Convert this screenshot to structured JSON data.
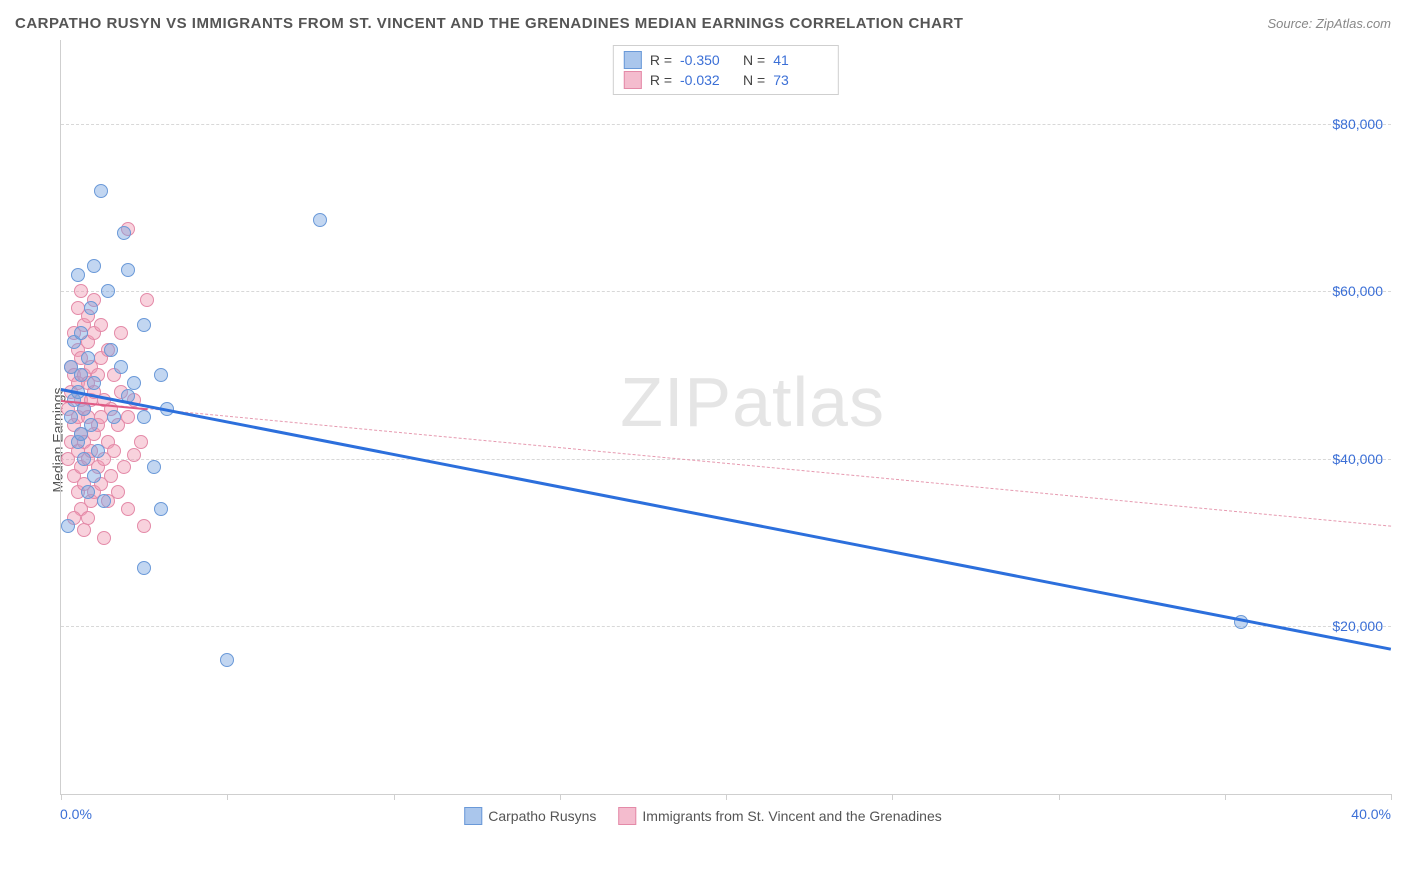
{
  "title": "CARPATHO RUSYN VS IMMIGRANTS FROM ST. VINCENT AND THE GRENADINES MEDIAN EARNINGS CORRELATION CHART",
  "source": "Source: ZipAtlas.com",
  "watermark_a": "ZIP",
  "watermark_b": "atlas",
  "ylabel": "Median Earnings",
  "x_min_label": "0.0%",
  "x_max_label": "40.0%",
  "chart": {
    "type": "scatter",
    "xlim": [
      0,
      40
    ],
    "ylim": [
      0,
      90000
    ],
    "ytick_step": 20000,
    "ytick_labels": [
      "$20,000",
      "$40,000",
      "$60,000",
      "$80,000"
    ],
    "ytick_values": [
      20000,
      40000,
      60000,
      80000
    ],
    "xtick_values": [
      0,
      5,
      10,
      15,
      20,
      25,
      30,
      35,
      40
    ],
    "background_color": "#ffffff",
    "grid_color": "#d8d8d8",
    "axis_color": "#cfcfcf",
    "label_color": "#555555",
    "tick_label_color": "#3b6fd6",
    "point_radius": 7,
    "series": [
      {
        "name": "Carpatho Rusyns",
        "fill": "rgba(120,165,225,0.45)",
        "stroke": "#6a99d8",
        "swatch_fill": "#aac6ec",
        "swatch_stroke": "#6a99d8",
        "R": "-0.350",
        "N": "41",
        "trend": {
          "x1": 0,
          "y1": 48500,
          "x2": 40,
          "y2": 17500,
          "width": 2.5,
          "color": "#2c6fdc",
          "dash": "solid"
        },
        "points": [
          [
            0.2,
            32000
          ],
          [
            0.3,
            45000
          ],
          [
            0.3,
            51000
          ],
          [
            0.4,
            47000
          ],
          [
            0.4,
            54000
          ],
          [
            0.5,
            62000
          ],
          [
            0.5,
            48000
          ],
          [
            0.5,
            42000
          ],
          [
            0.6,
            55000
          ],
          [
            0.6,
            50000
          ],
          [
            0.7,
            46000
          ],
          [
            0.7,
            40000
          ],
          [
            0.8,
            36000
          ],
          [
            0.8,
            52000
          ],
          [
            0.9,
            58000
          ],
          [
            0.9,
            44000
          ],
          [
            1.0,
            49000
          ],
          [
            1.0,
            63000
          ],
          [
            1.1,
            41000
          ],
          [
            1.2,
            72000
          ],
          [
            1.3,
            35000
          ],
          [
            1.4,
            60000
          ],
          [
            1.5,
            53000
          ],
          [
            1.6,
            45000
          ],
          [
            1.8,
            51000
          ],
          [
            1.9,
            67000
          ],
          [
            2.0,
            62500
          ],
          [
            2.0,
            47500
          ],
          [
            2.2,
            49000
          ],
          [
            2.5,
            56000
          ],
          [
            2.5,
            45000
          ],
          [
            2.8,
            39000
          ],
          [
            3.0,
            34000
          ],
          [
            3.0,
            50000
          ],
          [
            3.2,
            46000
          ],
          [
            2.5,
            27000
          ],
          [
            5.0,
            16000
          ],
          [
            7.8,
            68500
          ],
          [
            35.5,
            20500
          ],
          [
            1.0,
            38000
          ],
          [
            0.6,
            43000
          ]
        ]
      },
      {
        "name": "Immigrants from St. Vincent and the Grenadines",
        "fill": "rgba(240,155,180,0.45)",
        "stroke": "#e48aa8",
        "swatch_fill": "#f4bcce",
        "swatch_stroke": "#e48aa8",
        "R": "-0.032",
        "N": "73",
        "trend": {
          "x1": 0,
          "y1": 47000,
          "x2": 40,
          "y2": 32000,
          "width": 1.2,
          "color": "#e69ab0",
          "dash": "4 4"
        },
        "trend_solid": {
          "x1": 0,
          "y1": 47000,
          "x2": 2.6,
          "y2": 46000,
          "width": 2,
          "color": "#e05a85"
        },
        "points": [
          [
            0.2,
            40000
          ],
          [
            0.2,
            46000
          ],
          [
            0.3,
            42000
          ],
          [
            0.3,
            48000
          ],
          [
            0.3,
            51000
          ],
          [
            0.4,
            38000
          ],
          [
            0.4,
            44000
          ],
          [
            0.4,
            50000
          ],
          [
            0.4,
            55000
          ],
          [
            0.5,
            36000
          ],
          [
            0.5,
            41000
          ],
          [
            0.5,
            45000
          ],
          [
            0.5,
            49000
          ],
          [
            0.5,
            53000
          ],
          [
            0.6,
            34000
          ],
          [
            0.6,
            39000
          ],
          [
            0.6,
            43000
          ],
          [
            0.6,
            47000
          ],
          [
            0.6,
            52000
          ],
          [
            0.7,
            37000
          ],
          [
            0.7,
            42000
          ],
          [
            0.7,
            46000
          ],
          [
            0.7,
            50000
          ],
          [
            0.7,
            56000
          ],
          [
            0.8,
            33000
          ],
          [
            0.8,
            40000
          ],
          [
            0.8,
            45000
          ],
          [
            0.8,
            49000
          ],
          [
            0.8,
            54000
          ],
          [
            0.9,
            35000
          ],
          [
            0.9,
            41000
          ],
          [
            0.9,
            47000
          ],
          [
            0.9,
            51000
          ],
          [
            1.0,
            36000
          ],
          [
            1.0,
            43000
          ],
          [
            1.0,
            48000
          ],
          [
            1.0,
            55000
          ],
          [
            1.1,
            39000
          ],
          [
            1.1,
            44000
          ],
          [
            1.1,
            50000
          ],
          [
            1.2,
            37000
          ],
          [
            1.2,
            45000
          ],
          [
            1.2,
            52000
          ],
          [
            1.3,
            40000
          ],
          [
            1.3,
            47000
          ],
          [
            1.4,
            35000
          ],
          [
            1.4,
            42000
          ],
          [
            1.4,
            53000
          ],
          [
            1.5,
            38000
          ],
          [
            1.5,
            46000
          ],
          [
            1.6,
            41000
          ],
          [
            1.6,
            50000
          ],
          [
            1.7,
            36000
          ],
          [
            1.7,
            44000
          ],
          [
            1.8,
            48000
          ],
          [
            1.9,
            39000
          ],
          [
            2.0,
            45000
          ],
          [
            2.0,
            34000
          ],
          [
            2.2,
            40500
          ],
          [
            2.2,
            47000
          ],
          [
            2.4,
            42000
          ],
          [
            2.5,
            32000
          ],
          [
            0.5,
            58000
          ],
          [
            0.6,
            60000
          ],
          [
            0.8,
            57000
          ],
          [
            1.0,
            59000
          ],
          [
            1.2,
            56000
          ],
          [
            1.8,
            55000
          ],
          [
            0.4,
            33000
          ],
          [
            0.7,
            31500
          ],
          [
            1.3,
            30500
          ],
          [
            2.0,
            67500
          ],
          [
            2.6,
            59000
          ]
        ]
      }
    ]
  },
  "legend_stats_labels": {
    "R": "R =",
    "N": "N ="
  }
}
